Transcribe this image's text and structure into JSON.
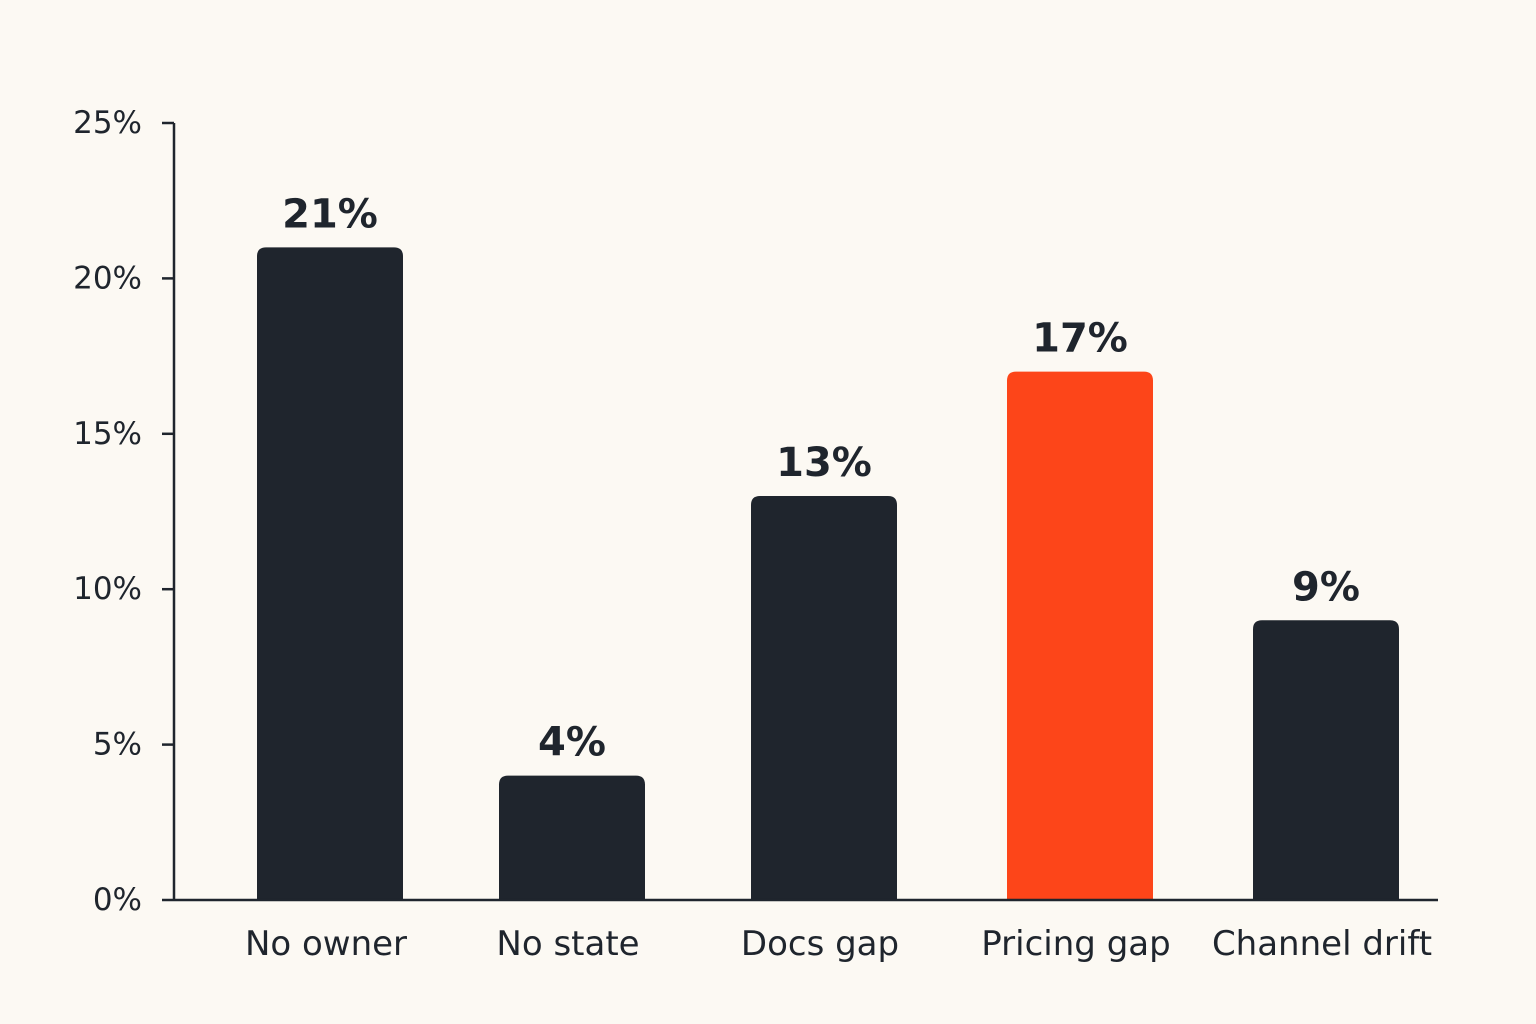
{
  "chart_data": {
    "type": "bar",
    "title": "",
    "xlabel": "",
    "ylabel": "",
    "categories": [
      "No owner",
      "No state",
      "Docs gap",
      "Pricing gap",
      "Channel drift"
    ],
    "values": [
      21,
      4,
      13,
      17,
      9
    ],
    "value_labels": [
      "21%",
      "4%",
      "13%",
      "17%",
      "9%"
    ],
    "ylim": [
      0,
      25
    ],
    "yticks": [
      0,
      5,
      10,
      15,
      20,
      25
    ],
    "ytick_labels": [
      "0%",
      "5%",
      "10%",
      "15%",
      "20%",
      "25%"
    ],
    "highlight_index": 3,
    "grid": false,
    "legend": "none",
    "colors": {
      "background": "#fcf9f3",
      "bar": "#1f252d",
      "highlight": "#fd4519",
      "axis": "#1f252d",
      "text": "#1f252d"
    }
  }
}
